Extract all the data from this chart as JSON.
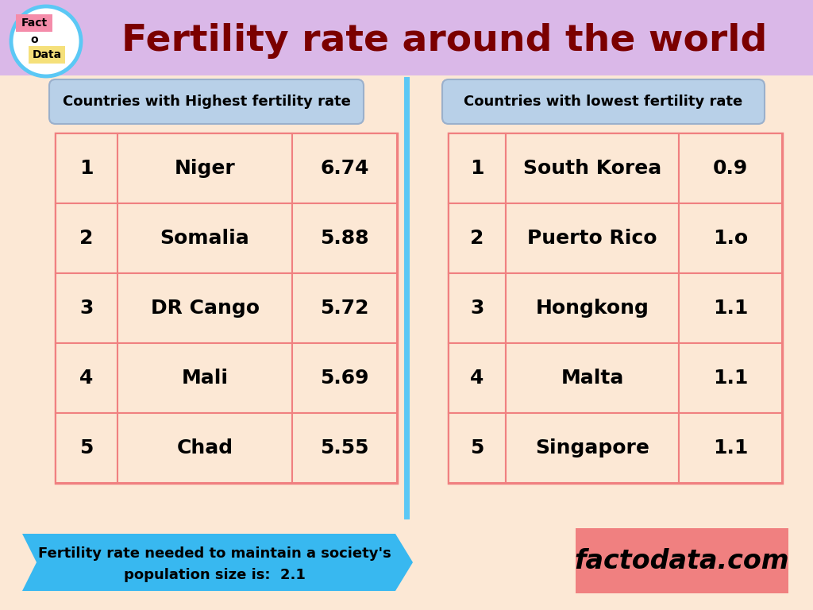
{
  "title": "Fertility rate around the world",
  "bg_color": "#fce8d5",
  "header_bg": "#dab8e8",
  "header_title_color": "#7b0000",
  "left_table_header": "Countries with Highest fertility rate",
  "right_table_header": "Countries with lowest fertility rate",
  "left_data": [
    [
      "1",
      "Niger",
      "6.74"
    ],
    [
      "2",
      "Somalia",
      "5.88"
    ],
    [
      "3",
      "DR Cango",
      "5.72"
    ],
    [
      "4",
      "Mali",
      "5.69"
    ],
    [
      "5",
      "Chad",
      "5.55"
    ]
  ],
  "right_data": [
    [
      "1",
      "South Korea",
      "0.9"
    ],
    [
      "2",
      "Puerto Rico",
      "1.o"
    ],
    [
      "3",
      "Hongkong",
      "1.1"
    ],
    [
      "4",
      "Malta",
      "1.1"
    ],
    [
      "5",
      "Singapore",
      "1.1"
    ]
  ],
  "table_bg": "#fce8d5",
  "table_border": "#f08080",
  "cell_text_color": "#000000",
  "divider_color": "#5bc8f5",
  "footer_text_line1": "Fertility rate needed to maintain a society's",
  "footer_text_line2": "population size is:  2.1",
  "footer_bg": "#38b8f0",
  "logo_pink_bg": "#f48caa",
  "logo_yellow_bg": "#f5e07a",
  "website_bg": "#f08080",
  "website_text": "factodata.com",
  "logo_circle_border": "#5bc8f5",
  "header_label_bg": "#b8d0e8",
  "header_label_border": "#9ab0cc"
}
